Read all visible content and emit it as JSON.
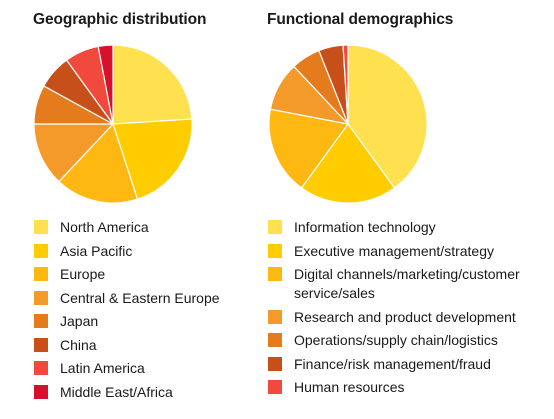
{
  "chart_data": [
    {
      "type": "pie",
      "title": "Geographic distribution",
      "start_angle": 0,
      "categories": [
        "North America",
        "Asia Pacific",
        "Europe",
        "Central & Eastern Europe",
        "Japan",
        "China",
        "Latin America",
        "Middle East/Africa"
      ],
      "values": [
        24,
        21,
        17,
        13,
        8,
        7,
        7,
        3
      ],
      "colors": [
        "#FFE14F",
        "#FFCC00",
        "#FFB812",
        "#F49A2A",
        "#E47B1C",
        "#C74F1A",
        "#F1493E",
        "#D7112B"
      ]
    },
    {
      "type": "pie",
      "title": "Functional demographics",
      "start_angle": 0,
      "categories": [
        "Information technology",
        "Executive management/strategy",
        "Digital channels/marketing/customer service/sales",
        "Research and product development",
        "Operations/supply chain/logistics",
        "Finance/risk management/fraud",
        "Human resources"
      ],
      "values": [
        40,
        20,
        18,
        10,
        6,
        5,
        1
      ],
      "colors": [
        "#FFE14F",
        "#FFCC00",
        "#FFB812",
        "#F49A2A",
        "#E47B1C",
        "#C74F1A",
        "#F1493E"
      ]
    }
  ]
}
